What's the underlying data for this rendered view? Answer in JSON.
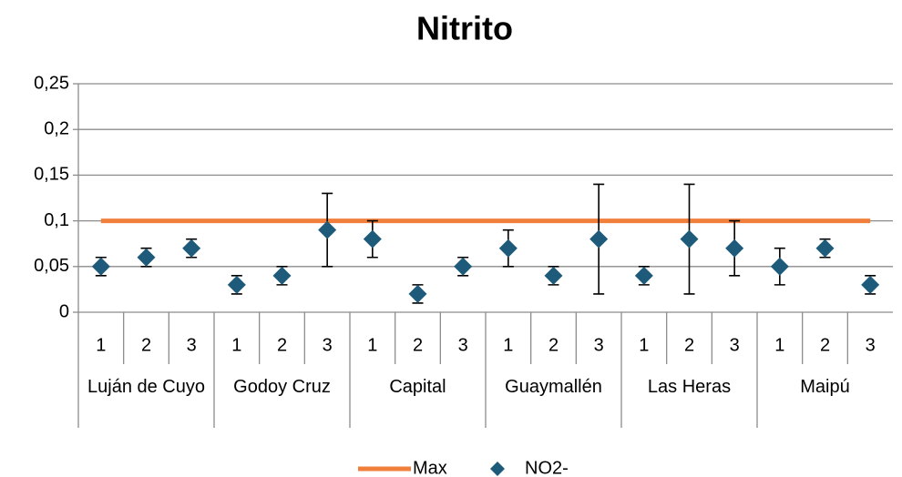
{
  "chart_data": {
    "type": "scatter",
    "title": "Nitrito",
    "categories": [
      "1",
      "2",
      "3",
      "1",
      "2",
      "3",
      "1",
      "2",
      "3",
      "1",
      "2",
      "3",
      "1",
      "2",
      "3",
      "1",
      "2",
      "3"
    ],
    "groups": [
      "Luján de Cuyo",
      "Godoy Cruz",
      "Capital",
      "Guaymallén",
      "Las Heras",
      "Maipú"
    ],
    "series": [
      {
        "name": "Max",
        "type": "line",
        "color": "#f07f3c",
        "values": [
          0.1,
          0.1,
          0.1,
          0.1,
          0.1,
          0.1,
          0.1,
          0.1,
          0.1,
          0.1,
          0.1,
          0.1,
          0.1,
          0.1,
          0.1,
          0.1,
          0.1,
          0.1
        ]
      },
      {
        "name": "NO2-",
        "type": "scatter",
        "color": "#1e5b7a",
        "values": [
          0.05,
          0.06,
          0.07,
          0.03,
          0.04,
          0.09,
          0.08,
          0.02,
          0.05,
          0.07,
          0.04,
          0.08,
          0.04,
          0.08,
          0.07,
          0.05,
          0.07,
          0.03
        ],
        "errors": [
          0.01,
          0.01,
          0.01,
          0.01,
          0.01,
          0.04,
          0.02,
          0.01,
          0.01,
          0.02,
          0.01,
          0.06,
          0.01,
          0.06,
          0.03,
          0.02,
          0.01,
          0.01
        ]
      }
    ],
    "ylim": [
      0,
      0.25
    ],
    "yticks": [
      0,
      {
        "value": 0.05,
        "label": "0,05"
      },
      {
        "value": 0.1,
        "label": "0,1"
      },
      {
        "value": 0.15,
        "label": "0,15"
      },
      {
        "value": 0.2,
        "label": "0,2"
      },
      {
        "value": 0.25,
        "label": "0,25"
      }
    ],
    "grid": true,
    "legend": "bottom"
  }
}
